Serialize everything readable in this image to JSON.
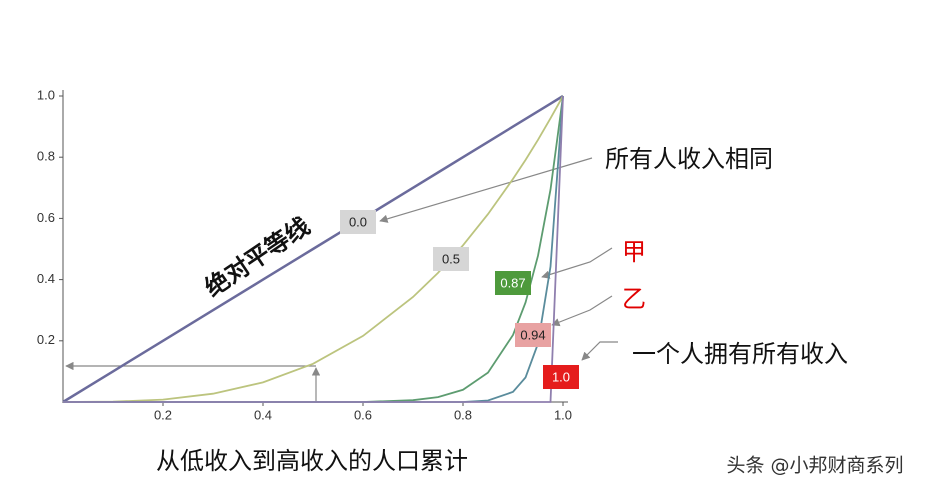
{
  "chart_data": {
    "type": "line",
    "x": [
      0,
      0.1,
      0.2,
      0.3,
      0.4,
      0.5,
      0.6,
      0.7,
      0.75,
      0.8,
      0.85,
      0.9,
      0.925,
      0.95,
      0.975,
      1.0
    ],
    "series": [
      {
        "name": "0.0",
        "color": "#6b6b9c",
        "box_color": "#d6d6d6",
        "text_color": "#222",
        "values": [
          0,
          0.1,
          0.2,
          0.3,
          0.4,
          0.5,
          0.6,
          0.7,
          0.75,
          0.8,
          0.85,
          0.9,
          0.925,
          0.95,
          0.975,
          1.0
        ]
      },
      {
        "name": "0.5",
        "color": "#bcc47e",
        "box_color": "#d6d6d6",
        "text_color": "#222",
        "values": [
          0,
          0.001,
          0.008,
          0.027,
          0.064,
          0.125,
          0.216,
          0.343,
          0.422,
          0.512,
          0.614,
          0.729,
          0.791,
          0.857,
          0.927,
          1.0
        ]
      },
      {
        "name": "0.87",
        "color": "#5d9c70",
        "box_color": "#4e9a3c",
        "text_color": "#fff",
        "values": [
          0,
          0,
          0,
          0,
          0,
          0,
          0,
          0.006,
          0.016,
          0.04,
          0.096,
          0.219,
          0.325,
          0.478,
          0.694,
          1.0
        ]
      },
      {
        "name": "0.94",
        "color": "#5a8c9c",
        "box_color": "#e8a2a2",
        "text_color": "#222",
        "values": [
          0,
          0,
          0,
          0,
          0,
          0,
          0,
          0,
          0,
          0,
          0.005,
          0.033,
          0.08,
          0.191,
          0.442,
          1.0
        ]
      },
      {
        "name": "1.0",
        "color": "#8f7fae",
        "box_color": "#e51c1c",
        "text_color": "#fff",
        "values": [
          0,
          0,
          0,
          0,
          0,
          0,
          0,
          0,
          0,
          0,
          0,
          0,
          0,
          0,
          0,
          1.0
        ]
      }
    ],
    "xlim": [
      0,
      1
    ],
    "ylim": [
      0,
      1
    ],
    "xticks": [
      0.2,
      0.4,
      0.6,
      0.8,
      {
        "value": 1,
        "label": "1.0"
      }
    ],
    "yticks": [
      0.2,
      0.4,
      0.6,
      0.8,
      {
        "value": 1,
        "label": "1.0"
      }
    ],
    "xlabel": "从低收入到高收入的人口累计",
    "annotations": {
      "equality_line": "绝对平等线",
      "all_same": "所有人收入相同",
      "jia": "甲",
      "yi": "乙",
      "one_person": "一个人拥有所有收入"
    },
    "watermark": "头条 @小邦财商系列"
  }
}
